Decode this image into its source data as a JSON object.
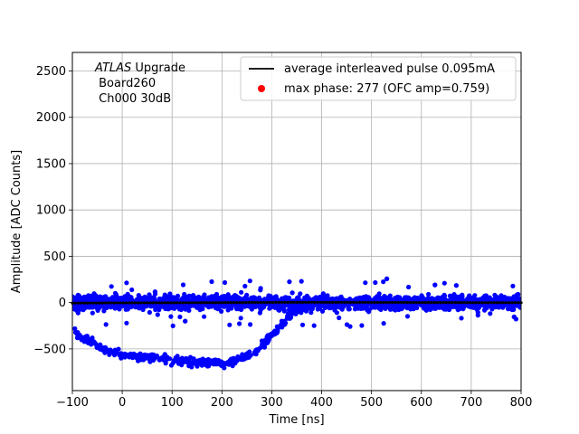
{
  "chart_data": {
    "type": "scatter",
    "title": "",
    "xlabel": "Time [ns]",
    "ylabel": "Amplitude [ADC Counts]",
    "xlim": [
      -100,
      800
    ],
    "ylim": [
      -950,
      2700
    ],
    "grid": true,
    "xticks": [
      -100,
      0,
      100,
      200,
      300,
      400,
      500,
      600,
      700,
      800
    ],
    "yticks": [
      -500,
      0,
      500,
      1000,
      1500,
      2000,
      2500
    ],
    "annotation": {
      "italic": "ATLAS",
      "rest": " Upgrade",
      "line2": " Board260",
      "line3": " Ch000 30dB"
    },
    "legend": {
      "placement": "top-right",
      "entries": [
        {
          "label": "average interleaved pulse 0.095mA",
          "marker": "line",
          "color": "#000000"
        },
        {
          "label": "max phase: 277 (OFC amp=0.759)",
          "marker": "dot",
          "color": "#ff0000"
        }
      ]
    },
    "series": [
      {
        "kind": "scatter-baseline",
        "color": "#0000ff",
        "x_range": [
          -100,
          800
        ],
        "center": 0,
        "spread": 130,
        "outlier_extent": 260
      },
      {
        "kind": "scatter-pulse",
        "color": "#0000ff",
        "points": [
          [
            -95,
            -320
          ],
          [
            -80,
            -380
          ],
          [
            -60,
            -420
          ],
          [
            -40,
            -500
          ],
          [
            -20,
            -540
          ],
          [
            0,
            -560
          ],
          [
            25,
            -570
          ],
          [
            50,
            -590
          ],
          [
            75,
            -610
          ],
          [
            100,
            -620
          ],
          [
            125,
            -630
          ],
          [
            150,
            -640
          ],
          [
            175,
            -650
          ],
          [
            200,
            -660
          ],
          [
            225,
            -630
          ],
          [
            250,
            -580
          ],
          [
            270,
            -520
          ],
          [
            290,
            -420
          ],
          [
            310,
            -300
          ],
          [
            330,
            -180
          ],
          [
            350,
            -80
          ],
          [
            370,
            -20
          ]
        ],
        "spread": 70
      },
      {
        "kind": "line",
        "name": "average interleaved pulse 0.095mA",
        "color": "#000000",
        "x": [
          -100,
          0,
          100,
          200,
          300,
          400,
          500,
          600,
          700,
          800
        ],
        "y": [
          -5,
          -3,
          -2,
          0,
          2,
          3,
          2,
          1,
          0,
          0
        ]
      }
    ]
  }
}
